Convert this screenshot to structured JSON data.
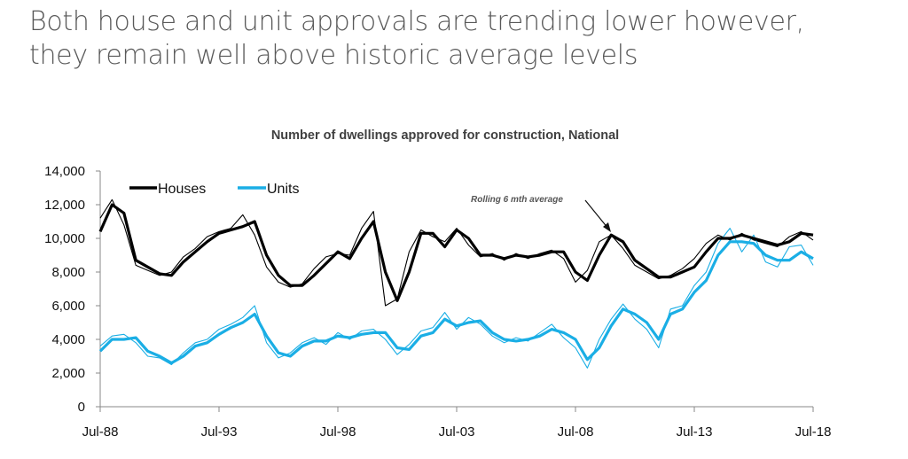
{
  "headline": {
    "line1": "Both house and unit approvals are trending lower however,",
    "line2": "they remain well above historic average levels"
  },
  "chart_data": {
    "type": "line",
    "title": "Number of dwellings approved for construction, National",
    "xlabel": "",
    "ylabel": "",
    "ylim": [
      0,
      14000
    ],
    "yticks": [
      "0",
      "2,000",
      "4,000",
      "6,000",
      "8,000",
      "10,000",
      "12,000",
      "14,000"
    ],
    "ytick_values": [
      0,
      2000,
      4000,
      6000,
      8000,
      10000,
      12000,
      14000
    ],
    "xlim": [
      "Jul-88",
      "Jul-18"
    ],
    "xticks": [
      "Jul-88",
      "Jul-93",
      "Jul-98",
      "Jul-03",
      "Jul-08",
      "Jul-13",
      "Jul-18"
    ],
    "x_sampling": "semi-annual from Jul-88 to Jul-18",
    "grid": false,
    "legend_position": "top-left",
    "annotation": "Rolling 6 mth average",
    "colors": {
      "houses": "#000000",
      "units": "#1aaee5"
    },
    "series": [
      {
        "name": "Houses",
        "kind": "rolling",
        "color": "#000000",
        "values": [
          10400,
          12000,
          11500,
          8700,
          8300,
          7900,
          7800,
          8600,
          9200,
          9800,
          10300,
          10500,
          10700,
          11000,
          9000,
          7800,
          7200,
          7200,
          7800,
          8500,
          9200,
          8800,
          10000,
          11000,
          8000,
          6300,
          8000,
          10300,
          10300,
          9500,
          10500,
          10000,
          9000,
          9000,
          8800,
          9000,
          8900,
          9000,
          9200,
          9200,
          8000,
          7500,
          9000,
          10200,
          9800,
          8700,
          8200,
          7700,
          7700,
          8000,
          8300,
          9200,
          10000,
          10000,
          10200,
          10000,
          9800,
          9600,
          9800,
          10300,
          10200
        ]
      },
      {
        "kind": "monthly",
        "of": "Houses",
        "color": "#000000",
        "values": [
          11200,
          12300,
          10800,
          8400,
          8100,
          7800,
          8000,
          8900,
          9400,
          10100,
          10400,
          10600,
          11400,
          10200,
          8300,
          7400,
          7100,
          7300,
          8200,
          8900,
          9100,
          9000,
          10600,
          11600,
          6000,
          6400,
          9200,
          10500,
          10100,
          9800,
          10600,
          9600,
          8900,
          9100,
          8700,
          9100,
          8800,
          9100,
          9300,
          8800,
          7400,
          8100,
          9800,
          10200,
          9400,
          8400,
          8000,
          7600,
          7800,
          8200,
          8800,
          9700,
          10200,
          9900,
          10300,
          9900,
          9700,
          9500,
          10100,
          10400,
          9900
        ]
      },
      {
        "name": "Units",
        "kind": "rolling",
        "color": "#1aaee5",
        "values": [
          3300,
          4000,
          4000,
          4100,
          3300,
          3000,
          2600,
          3000,
          3600,
          3800,
          4300,
          4700,
          5000,
          5500,
          4200,
          3200,
          3000,
          3600,
          3900,
          3900,
          4200,
          4100,
          4300,
          4400,
          4400,
          3500,
          3400,
          4200,
          4400,
          5200,
          4800,
          5000,
          5100,
          4400,
          4000,
          3900,
          4000,
          4200,
          4600,
          4400,
          4000,
          2800,
          3500,
          4800,
          5800,
          5500,
          5000,
          4000,
          5500,
          5800,
          6800,
          7500,
          9000,
          9800,
          9800,
          9700,
          9000,
          8700,
          8700,
          9200,
          8800
        ]
      },
      {
        "kind": "monthly",
        "of": "Units",
        "color": "#1aaee5",
        "values": [
          3600,
          4200,
          4300,
          3800,
          3000,
          2900,
          2500,
          3200,
          3800,
          4000,
          4600,
          4900,
          5300,
          6000,
          3800,
          2900,
          3200,
          3800,
          4100,
          3700,
          4400,
          4000,
          4500,
          4600,
          4000,
          3100,
          3700,
          4500,
          4700,
          5600,
          4600,
          5300,
          4900,
          4200,
          3800,
          4100,
          3900,
          4400,
          4900,
          4100,
          3500,
          2300,
          4000,
          5200,
          6100,
          5200,
          4600,
          3500,
          5800,
          6000,
          7200,
          8000,
          9700,
          10600,
          9200,
          10200,
          8600,
          8300,
          9500,
          9600,
          8400
        ]
      }
    ]
  }
}
